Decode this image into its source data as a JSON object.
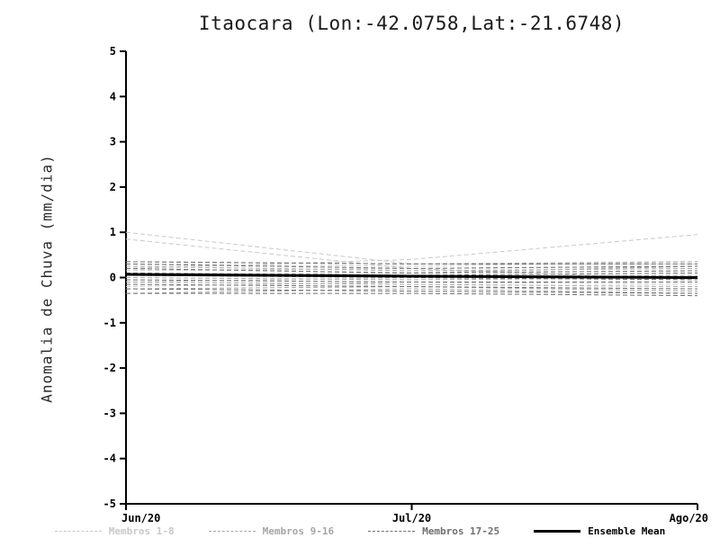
{
  "chart_data": {
    "type": "line",
    "title": "Itaocara (Lon:-42.0758,Lat:-21.6748)",
    "ylabel": "Anomalia de Chuva (mm/dia)",
    "xlabel": "",
    "x_ticklabels": [
      "Jun/20",
      "Jul/20",
      "Ago/20"
    ],
    "ylim": [
      -5,
      5
    ],
    "yticks": [
      -5,
      -4,
      -3,
      -2,
      -1,
      0,
      1,
      2,
      3,
      4,
      5
    ],
    "grid": false,
    "legend_position": "bottom",
    "groups": [
      {
        "name": "Membros 1-8",
        "label": "Membros 1-8",
        "color": "#c9c9c9",
        "style": "dashed",
        "line_width": 1,
        "series": [
          [
            1.0,
            0.3,
            0.3
          ],
          [
            0.85,
            0.2,
            -0.05
          ],
          [
            0.2,
            0.4,
            0.95
          ],
          [
            0.3,
            0.25,
            0.35
          ],
          [
            0.15,
            0.2,
            0.25
          ],
          [
            0.05,
            0.1,
            0.15
          ],
          [
            -0.1,
            0.0,
            -0.05
          ],
          [
            -0.2,
            -0.1,
            -0.15
          ]
        ]
      },
      {
        "name": "Membros 9-16",
        "label": "Membros 9-16",
        "color": "#a6a6a6",
        "style": "dashed",
        "line_width": 1,
        "series": [
          [
            0.35,
            0.3,
            0.35
          ],
          [
            0.25,
            0.15,
            0.2
          ],
          [
            0.2,
            0.1,
            0.25
          ],
          [
            0.1,
            0.0,
            0.05
          ],
          [
            0.0,
            -0.05,
            0.0
          ],
          [
            -0.1,
            -0.15,
            -0.2
          ],
          [
            -0.25,
            -0.2,
            -0.3
          ],
          [
            -0.35,
            -0.25,
            -0.35
          ]
        ]
      },
      {
        "name": "Membros 17-25",
        "label": "Membros 17-25",
        "color": "#6f6f6f",
        "style": "dashed",
        "line_width": 1,
        "series": [
          [
            0.35,
            0.3,
            0.3
          ],
          [
            0.3,
            0.2,
            0.25
          ],
          [
            0.2,
            0.1,
            0.15
          ],
          [
            0.1,
            0.05,
            0.1
          ],
          [
            0.05,
            0.0,
            -0.05
          ],
          [
            -0.05,
            -0.1,
            -0.1
          ],
          [
            -0.15,
            -0.2,
            -0.25
          ],
          [
            -0.25,
            -0.3,
            -0.35
          ],
          [
            -0.35,
            -0.35,
            -0.4
          ]
        ]
      },
      {
        "name": "Ensemble Mean",
        "label": "Ensemble Mean",
        "color": "#000000",
        "style": "solid",
        "line_width": 3,
        "series": [
          [
            0.07,
            0.03,
            0.0
          ]
        ]
      }
    ]
  }
}
